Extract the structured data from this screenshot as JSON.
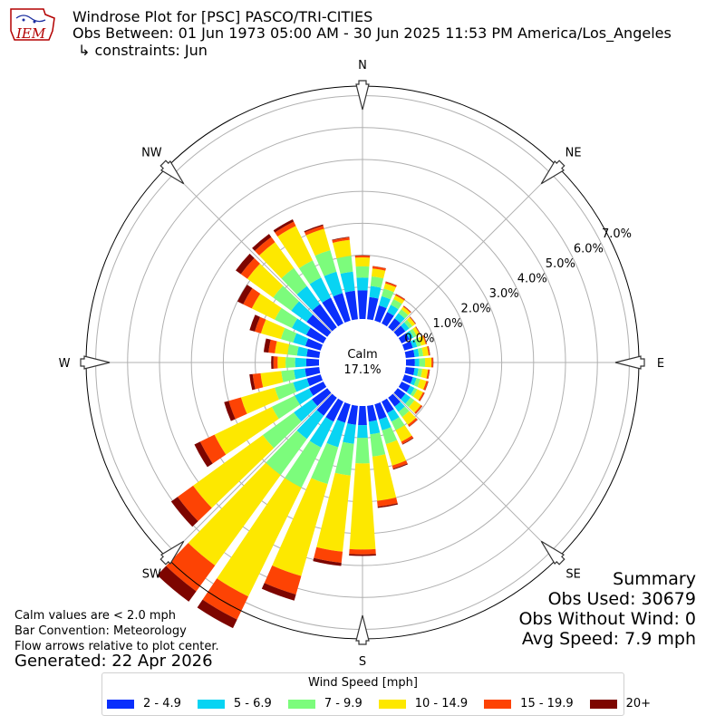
{
  "header": {
    "logo_text": "IEM",
    "title": "Windrose Plot for [PSC] PASCO/TRI-CITIES",
    "obs_between": "Obs Between: 01 Jun 1973 05:00 AM - 30 Jun 2025 11:53 PM America/Los_Angeles",
    "constraints": "↳ constraints: Jun"
  },
  "notes": {
    "calm_note": "Calm values are < 2.0 mph",
    "bar_convention": "Bar Convention: Meteorology",
    "flow_arrows": "Flow arrows relative to plot center.",
    "generated": "Generated: 22 Apr 2026"
  },
  "summary": {
    "title": "Summary",
    "obs_used": "Obs Used: 30679",
    "obs_without_wind": "Obs Without Wind: 0",
    "avg_speed": "Avg Speed: 7.9 mph"
  },
  "chart_data": {
    "type": "windrose",
    "calm_label": "Calm",
    "calm_value": "17.1%",
    "rlim": [
      0,
      7.3
    ],
    "radial_ticks": [
      "0.0%",
      "1.0%",
      "2.0%",
      "3.0%",
      "4.0%",
      "5.0%",
      "6.0%",
      "7.0%"
    ],
    "direction_labels": [
      {
        "name": "N",
        "deg": 0
      },
      {
        "name": "NE",
        "deg": 45
      },
      {
        "name": "E",
        "deg": 90
      },
      {
        "name": "SE",
        "deg": 135
      },
      {
        "name": "S",
        "deg": 180
      },
      {
        "name": "SW",
        "deg": 225
      },
      {
        "name": "W",
        "deg": 270
      },
      {
        "name": "NW",
        "deg": 315
      }
    ],
    "grid": true,
    "legend_title": "Wind Speed [mph]",
    "legend_position": "bottom",
    "bins": [
      {
        "label": "2 - 4.9",
        "color": "#0a2ffc"
      },
      {
        "label": "5 - 6.9",
        "color": "#08d4f3"
      },
      {
        "label": "7 - 9.9",
        "color": "#7cfc7c"
      },
      {
        "label": "10 - 14.9",
        "color": "#fde800"
      },
      {
        "label": "15 - 19.9",
        "color": "#fd4304"
      },
      {
        "label": "20+",
        "color": "#7d0500"
      }
    ],
    "directions_deg": [
      0,
      10,
      20,
      30,
      40,
      50,
      60,
      70,
      80,
      90,
      100,
      110,
      120,
      130,
      140,
      150,
      160,
      170,
      180,
      190,
      200,
      210,
      220,
      230,
      240,
      250,
      260,
      270,
      280,
      290,
      300,
      310,
      320,
      330,
      340,
      350
    ],
    "cumulative_percent": [
      [
        0.9,
        1.3,
        1.65,
        1.93,
        1.99,
        2.0
      ],
      [
        0.7,
        1.05,
        1.35,
        1.6,
        1.67,
        1.68
      ],
      [
        0.5,
        0.8,
        1.05,
        1.22,
        1.27,
        1.28
      ],
      [
        0.4,
        0.65,
        0.85,
        0.98,
        1.02,
        1.03
      ],
      [
        0.35,
        0.55,
        0.7,
        0.8,
        0.83,
        0.84
      ],
      [
        0.3,
        0.45,
        0.57,
        0.68,
        0.7,
        0.71
      ],
      [
        0.28,
        0.42,
        0.53,
        0.63,
        0.65,
        0.66
      ],
      [
        0.28,
        0.42,
        0.55,
        0.7,
        0.73,
        0.74
      ],
      [
        0.28,
        0.42,
        0.55,
        0.72,
        0.76,
        0.77
      ],
      [
        0.28,
        0.42,
        0.6,
        0.8,
        0.85,
        0.86
      ],
      [
        0.28,
        0.4,
        0.52,
        0.7,
        0.75,
        0.76
      ],
      [
        0.28,
        0.4,
        0.52,
        0.72,
        0.78,
        0.79
      ],
      [
        0.3,
        0.45,
        0.55,
        0.75,
        0.8,
        0.81
      ],
      [
        0.3,
        0.5,
        0.65,
        0.9,
        0.95,
        0.96
      ],
      [
        0.35,
        0.55,
        0.75,
        1.05,
        1.12,
        1.13
      ],
      [
        0.4,
        0.7,
        1.0,
        1.4,
        1.48,
        1.5
      ],
      [
        0.5,
        0.85,
        1.3,
        2.0,
        2.1,
        2.13
      ],
      [
        0.5,
        0.9,
        1.6,
        3.0,
        3.18,
        3.22
      ],
      [
        0.6,
        1.0,
        1.8,
        4.5,
        4.65,
        4.7
      ],
      [
        0.6,
        1.2,
        2.2,
        4.6,
        4.95,
        5.05
      ],
      [
        0.6,
        1.4,
        2.6,
        5.6,
        6.2,
        6.4
      ],
      [
        0.7,
        1.6,
        3.0,
        6.8,
        7.6,
        7.9
      ],
      [
        0.7,
        1.6,
        3.0,
        6.5,
        7.5,
        7.9
      ],
      [
        0.6,
        1.3,
        2.5,
        5.2,
        5.8,
        6.05
      ],
      [
        0.5,
        1.0,
        1.8,
        3.8,
        4.3,
        4.5
      ],
      [
        0.45,
        0.9,
        1.5,
        2.6,
        3.0,
        3.15
      ],
      [
        0.45,
        0.8,
        1.2,
        1.85,
        2.1,
        2.2
      ],
      [
        0.4,
        0.75,
        1.05,
        1.3,
        1.43,
        1.5
      ],
      [
        0.4,
        0.7,
        1.0,
        1.4,
        1.6,
        1.75
      ],
      [
        0.5,
        0.9,
        1.3,
        1.95,
        2.15,
        2.32
      ],
      [
        0.6,
        1.1,
        1.7,
        2.5,
        2.8,
        3.0
      ],
      [
        0.8,
        1.4,
        2.1,
        3.1,
        3.35,
        3.55
      ],
      [
        0.9,
        1.6,
        2.3,
        3.3,
        3.5,
        3.62
      ],
      [
        0.9,
        1.6,
        2.2,
        3.4,
        3.55,
        3.63
      ],
      [
        0.9,
        1.6,
        2.3,
        3.0,
        3.1,
        3.14
      ],
      [
        0.9,
        1.5,
        2.0,
        2.5,
        2.58,
        2.6
      ]
    ]
  }
}
